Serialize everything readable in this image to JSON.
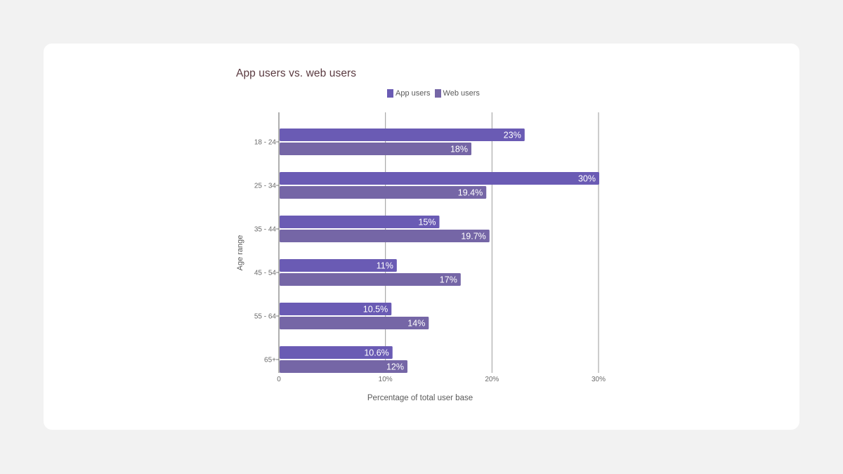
{
  "chart_data": {
    "type": "bar",
    "orientation": "horizontal",
    "title": "App users vs. web users",
    "xlabel": "Percentage of total user base",
    "ylabel": "Age range",
    "categories": [
      "18 - 24",
      "25 - 34",
      "35 - 44",
      "45 - 54",
      "55 - 64",
      "65+"
    ],
    "series": [
      {
        "name": "App users",
        "color": "#6a5bb4",
        "values": [
          23,
          30,
          15,
          11,
          10.5,
          10.6
        ],
        "labels": [
          "23%",
          "30%",
          "15%",
          "11%",
          "10.5%",
          "10.6%"
        ]
      },
      {
        "name": "Web users",
        "color": "#7566a6",
        "values": [
          18,
          19.4,
          19.7,
          17,
          14,
          12
        ],
        "labels": [
          "18%",
          "19.4%",
          "19.7%",
          "17%",
          "14%",
          "12%"
        ]
      }
    ],
    "xlim": [
      0,
      30
    ],
    "xticks": [
      0,
      10,
      20,
      30
    ],
    "xtick_labels": [
      "0",
      "10%",
      "20%",
      "30%"
    ],
    "grid": true,
    "legend_position": "top"
  }
}
